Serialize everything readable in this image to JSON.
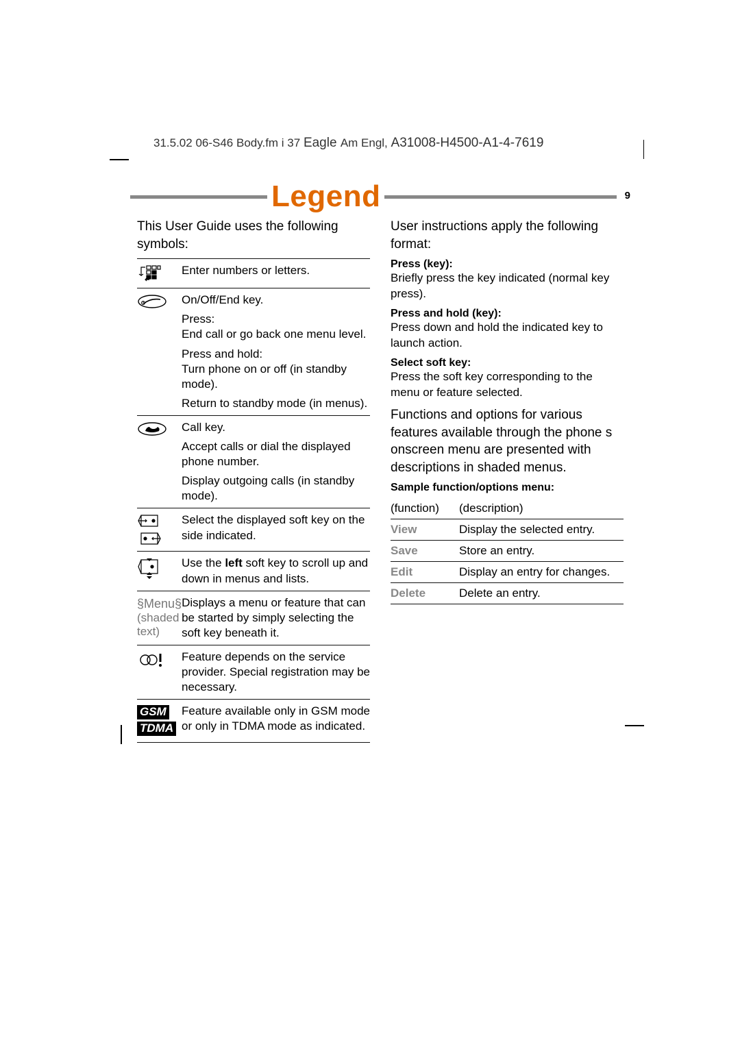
{
  "header": {
    "prefix": "31.5.02    06-S46 Body.fm    i 37 ",
    "eagle": "Eagle ",
    "mid": "Am Engl, ",
    "code": "A31008-H4500-A1-4-7619"
  },
  "title": "Legend",
  "page_number": "9",
  "left": {
    "intro": "This User Guide uses the following symbols:",
    "rows": [
      {
        "icon": "keypad",
        "paras": [
          "Enter numbers or letters."
        ]
      },
      {
        "icon": "onoff",
        "paras": [
          "On/Off/End key.",
          "Press:\nEnd call or go back one menu level.",
          "Press and hold:\nTurn phone on or off (in standby mode).",
          "Return to standby mode (in menus)."
        ]
      },
      {
        "icon": "call",
        "paras": [
          "Call key.",
          "Accept calls or dial the displayed phone number.",
          "Display outgoing calls (in standby mode)."
        ]
      },
      {
        "icon": "softkeys",
        "paras": [
          "Select the displayed soft key on the side indicated."
        ]
      },
      {
        "icon": "scroll",
        "paras_html": "Use the <b>left</b> soft key to scroll up and down in menus and lists."
      },
      {
        "icon": "menu",
        "menu_label": "§Menu§",
        "menu_sub": "(shaded text)",
        "paras": [
          "Displays a menu or feature that can be started by simply selecting the soft key beneath it."
        ]
      },
      {
        "icon": "provider",
        "paras": [
          "Feature depends on the service provider. Special registration may be necessary."
        ]
      },
      {
        "icon": "gsm",
        "gsm": "GSM",
        "tdma": "TDMA",
        "paras": [
          "Feature available only in GSM mode or only in TDMA mode as indicated."
        ]
      }
    ]
  },
  "right": {
    "intro": "User instructions apply the following format:",
    "sections": [
      {
        "h": "Press (key):",
        "p": "Briefly press the key indicated (normal key press)."
      },
      {
        "h": "Press and hold (key):",
        "p": "Press down and hold the indicated key to launch action."
      },
      {
        "h": "Select soft key:",
        "p": "Press the soft key corresponding to the menu or feature selected."
      }
    ],
    "big": "Functions and options for various features available through the phone s onscreen menu are presented with descriptions in shaded menus.",
    "sample_h": "Sample function/options menu:",
    "table_header": {
      "l": "(function)",
      "r": "(description)"
    },
    "functions": [
      {
        "l": "View",
        "r": "Display the selected entry."
      },
      {
        "l": "Save",
        "r": "Store an entry."
      },
      {
        "l": "Edit",
        "r": "Display an entry for changes."
      },
      {
        "l": "Delete",
        "r": "Delete an entry."
      }
    ]
  }
}
